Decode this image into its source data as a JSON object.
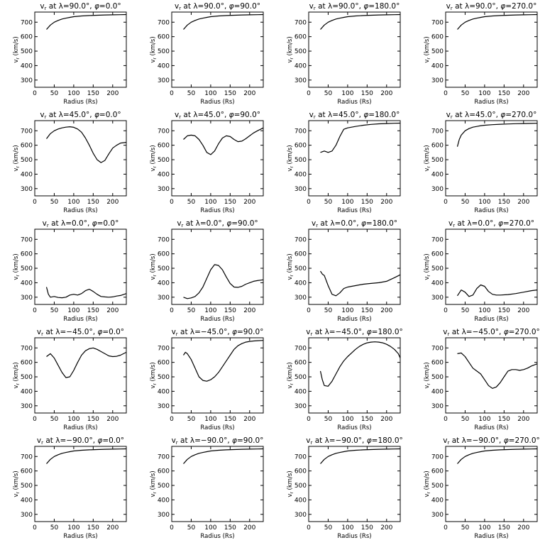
{
  "figure": {
    "background": "#ffffff",
    "line_color": "#000000"
  },
  "chart_data": [
    {
      "type": "line",
      "title": "v_r at λ=90.0°, φ=0.0°",
      "title_parts": {
        "lat": "90.0",
        "lon": "0.0"
      },
      "xlabel": "Radius (Rs)",
      "ylabel": "v_r (km/s)",
      "xlim": [
        0,
        235
      ],
      "ylim": [
        250,
        770
      ],
      "xticks": [
        0,
        50,
        100,
        150,
        200
      ],
      "yticks": [
        300,
        400,
        500,
        600,
        700
      ],
      "x": [
        30,
        40,
        50,
        60,
        70,
        80,
        90,
        100,
        120,
        140,
        160,
        180,
        200,
        220,
        235
      ],
      "y": [
        650,
        680,
        700,
        712,
        722,
        728,
        733,
        738,
        743,
        746,
        748,
        750,
        751,
        752,
        753
      ]
    },
    {
      "type": "line",
      "title": "v_r at λ=90.0°, φ=90.0°",
      "title_parts": {
        "lat": "90.0",
        "lon": "90.0"
      },
      "xlabel": "Radius (Rs)",
      "ylabel": "v_r (km/s)",
      "xlim": [
        0,
        235
      ],
      "ylim": [
        250,
        770
      ],
      "xticks": [
        0,
        50,
        100,
        150,
        200
      ],
      "yticks": [
        300,
        400,
        500,
        600,
        700
      ],
      "x": [
        30,
        40,
        50,
        60,
        70,
        80,
        90,
        100,
        120,
        140,
        160,
        180,
        200,
        220,
        235
      ],
      "y": [
        650,
        680,
        700,
        712,
        722,
        728,
        733,
        738,
        743,
        746,
        748,
        750,
        751,
        752,
        753
      ]
    },
    {
      "type": "line",
      "title": "v_r at λ=90.0°, φ=180.0°",
      "title_parts": {
        "lat": "90.0",
        "lon": "180.0"
      },
      "xlabel": "Radius (Rs)",
      "ylabel": "v_r (km/s)",
      "xlim": [
        0,
        235
      ],
      "ylim": [
        250,
        770
      ],
      "xticks": [
        0,
        50,
        100,
        150,
        200
      ],
      "yticks": [
        300,
        400,
        500,
        600,
        700
      ],
      "x": [
        30,
        40,
        50,
        60,
        70,
        80,
        90,
        100,
        120,
        140,
        160,
        180,
        200,
        220,
        235
      ],
      "y": [
        650,
        680,
        700,
        712,
        722,
        728,
        733,
        738,
        743,
        746,
        748,
        750,
        751,
        752,
        753
      ]
    },
    {
      "type": "line",
      "title": "v_r at λ=90.0°, φ=270.0°",
      "title_parts": {
        "lat": "90.0",
        "lon": "270.0"
      },
      "xlabel": "Radius (Rs)",
      "ylabel": "v_r (km/s)",
      "xlim": [
        0,
        235
      ],
      "ylim": [
        250,
        770
      ],
      "xticks": [
        0,
        50,
        100,
        150,
        200
      ],
      "yticks": [
        300,
        400,
        500,
        600,
        700
      ],
      "x": [
        30,
        40,
        50,
        60,
        70,
        80,
        90,
        100,
        120,
        140,
        160,
        180,
        200,
        220,
        235
      ],
      "y": [
        650,
        680,
        700,
        712,
        722,
        728,
        733,
        738,
        743,
        746,
        748,
        750,
        751,
        752,
        753
      ]
    },
    {
      "type": "line",
      "title": "v_r at λ=45.0°, φ=0.0°",
      "title_parts": {
        "lat": "45.0",
        "lon": "0.0"
      },
      "xlabel": "Radius (Rs)",
      "ylabel": "v_r (km/s)",
      "xlim": [
        0,
        235
      ],
      "ylim": [
        250,
        770
      ],
      "xticks": [
        0,
        50,
        100,
        150,
        200
      ],
      "yticks": [
        300,
        400,
        500,
        600,
        700
      ],
      "x": [
        30,
        40,
        50,
        60,
        70,
        80,
        90,
        100,
        110,
        120,
        130,
        140,
        150,
        160,
        170,
        180,
        190,
        200,
        210,
        220,
        235
      ],
      "y": [
        645,
        680,
        700,
        712,
        720,
        725,
        728,
        724,
        712,
        690,
        650,
        600,
        545,
        500,
        480,
        495,
        540,
        580,
        600,
        615,
        620
      ]
    },
    {
      "type": "line",
      "title": "v_r at λ=45.0°, φ=90.0°",
      "title_parts": {
        "lat": "45.0",
        "lon": "90.0"
      },
      "xlabel": "Radius (Rs)",
      "ylabel": "v_r (km/s)",
      "xlim": [
        0,
        235
      ],
      "ylim": [
        250,
        770
      ],
      "xticks": [
        0,
        50,
        100,
        150,
        200
      ],
      "yticks": [
        300,
        400,
        500,
        600,
        700
      ],
      "x": [
        30,
        40,
        50,
        60,
        70,
        80,
        90,
        100,
        110,
        120,
        130,
        140,
        150,
        160,
        170,
        180,
        190,
        200,
        210,
        220,
        235
      ],
      "y": [
        640,
        665,
        670,
        665,
        640,
        600,
        550,
        535,
        560,
        610,
        650,
        665,
        660,
        640,
        625,
        628,
        645,
        665,
        685,
        700,
        720
      ]
    },
    {
      "type": "line",
      "title": "v_r at λ=45.0°, φ=180.0°",
      "title_parts": {
        "lat": "45.0",
        "lon": "180.0"
      },
      "xlabel": "Radius (Rs)",
      "ylabel": "v_r (km/s)",
      "xlim": [
        0,
        235
      ],
      "ylim": [
        250,
        770
      ],
      "xticks": [
        0,
        50,
        100,
        150,
        200
      ],
      "yticks": [
        300,
        400,
        500,
        600,
        700
      ],
      "x": [
        30,
        40,
        50,
        60,
        70,
        80,
        90,
        100,
        110,
        120,
        140,
        160,
        180,
        200,
        220,
        235
      ],
      "y": [
        550,
        560,
        550,
        560,
        600,
        660,
        710,
        720,
        725,
        730,
        738,
        744,
        748,
        750,
        752,
        753
      ]
    },
    {
      "type": "line",
      "title": "v_r at λ=45.0°, φ=270.0°",
      "title_parts": {
        "lat": "45.0",
        "lon": "270.0"
      },
      "xlabel": "Radius (Rs)",
      "ylabel": "v_r (km/s)",
      "xlim": [
        0,
        235
      ],
      "ylim": [
        250,
        770
      ],
      "xticks": [
        0,
        50,
        100,
        150,
        200
      ],
      "yticks": [
        300,
        400,
        500,
        600,
        700
      ],
      "x": [
        30,
        35,
        40,
        50,
        60,
        70,
        80,
        90,
        100,
        120,
        140,
        160,
        180,
        200,
        220,
        235
      ],
      "y": [
        590,
        640,
        670,
        700,
        715,
        725,
        730,
        735,
        738,
        742,
        745,
        747,
        749,
        750,
        751,
        752
      ]
    },
    {
      "type": "line",
      "title": "v_r at λ=0.0°, φ=0.0°",
      "title_parts": {
        "lat": "0.0",
        "lon": "0.0"
      },
      "xlabel": "Radius (Rs)",
      "ylabel": "v_r (km/s)",
      "xlim": [
        0,
        235
      ],
      "ylim": [
        250,
        770
      ],
      "xticks": [
        0,
        50,
        100,
        150,
        200
      ],
      "yticks": [
        300,
        400,
        500,
        600,
        700
      ],
      "x": [
        30,
        35,
        40,
        50,
        60,
        70,
        80,
        90,
        100,
        110,
        120,
        130,
        140,
        150,
        160,
        170,
        180,
        190,
        200,
        210,
        220,
        235
      ],
      "y": [
        370,
        320,
        300,
        305,
        298,
        296,
        300,
        315,
        320,
        315,
        325,
        345,
        355,
        340,
        320,
        305,
        302,
        300,
        302,
        308,
        312,
        325
      ]
    },
    {
      "type": "line",
      "title": "v_r at λ=0.0°, φ=90.0°",
      "title_parts": {
        "lat": "0.0",
        "lon": "90.0"
      },
      "xlabel": "Radius (Rs)",
      "ylabel": "v_r (km/s)",
      "xlim": [
        0,
        235
      ],
      "ylim": [
        250,
        770
      ],
      "xticks": [
        0,
        50,
        100,
        150,
        200
      ],
      "yticks": [
        300,
        400,
        500,
        600,
        700
      ],
      "x": [
        30,
        40,
        50,
        60,
        70,
        80,
        90,
        100,
        110,
        120,
        130,
        140,
        150,
        160,
        170,
        180,
        190,
        200,
        210,
        220,
        235
      ],
      "y": [
        300,
        290,
        295,
        305,
        330,
        370,
        430,
        490,
        525,
        520,
        490,
        440,
        395,
        370,
        368,
        375,
        390,
        400,
        410,
        415,
        420
      ]
    },
    {
      "type": "line",
      "title": "v_r at λ=0.0°, φ=180.0°",
      "title_parts": {
        "lat": "0.0",
        "lon": "180.0"
      },
      "xlabel": "Radius (Rs)",
      "ylabel": "v_r (km/s)",
      "xlim": [
        0,
        235
      ],
      "ylim": [
        250,
        770
      ],
      "xticks": [
        0,
        50,
        100,
        150,
        200
      ],
      "yticks": [
        300,
        400,
        500,
        600,
        700
      ],
      "x": [
        30,
        35,
        40,
        50,
        60,
        70,
        80,
        90,
        100,
        110,
        120,
        140,
        160,
        180,
        200,
        220,
        235
      ],
      "y": [
        480,
        460,
        450,
        380,
        320,
        310,
        330,
        360,
        370,
        375,
        380,
        390,
        395,
        400,
        410,
        435,
        455
      ]
    },
    {
      "type": "line",
      "title": "v_r at λ=0.0°, φ=270.0°",
      "title_parts": {
        "lat": "0.0",
        "lon": "270.0"
      },
      "xlabel": "Radius (Rs)",
      "ylabel": "v_r (km/s)",
      "xlim": [
        0,
        235
      ],
      "ylim": [
        250,
        770
      ],
      "xticks": [
        0,
        50,
        100,
        150,
        200
      ],
      "yticks": [
        300,
        400,
        500,
        600,
        700
      ],
      "x": [
        30,
        40,
        50,
        60,
        70,
        80,
        90,
        100,
        110,
        120,
        130,
        140,
        160,
        180,
        200,
        220,
        235
      ],
      "y": [
        310,
        350,
        335,
        305,
        315,
        360,
        385,
        375,
        340,
        320,
        315,
        315,
        318,
        325,
        335,
        345,
        350
      ]
    },
    {
      "type": "line",
      "title": "v_r at λ=−45.0°, φ=0.0°",
      "title_parts": {
        "lat": "−45.0",
        "lon": "0.0"
      },
      "xlabel": "Radius (Rs)",
      "ylabel": "v_r (km/s)",
      "xlim": [
        0,
        235
      ],
      "ylim": [
        250,
        770
      ],
      "xticks": [
        0,
        50,
        100,
        150,
        200
      ],
      "yticks": [
        300,
        400,
        500,
        600,
        700
      ],
      "x": [
        30,
        40,
        50,
        60,
        70,
        80,
        90,
        100,
        110,
        120,
        130,
        140,
        150,
        160,
        170,
        180,
        190,
        200,
        210,
        220,
        235
      ],
      "y": [
        640,
        660,
        630,
        580,
        530,
        495,
        500,
        545,
        600,
        650,
        680,
        695,
        700,
        690,
        675,
        660,
        645,
        640,
        642,
        650,
        670
      ]
    },
    {
      "type": "line",
      "title": "v_r at λ=−45.0°, φ=90.0°",
      "title_parts": {
        "lat": "−45.0",
        "lon": "90.0"
      },
      "xlabel": "Radius (Rs)",
      "ylabel": "v_r (km/s)",
      "xlim": [
        0,
        235
      ],
      "ylim": [
        250,
        770
      ],
      "xticks": [
        0,
        50,
        100,
        150,
        200
      ],
      "yticks": [
        300,
        400,
        500,
        600,
        700
      ],
      "x": [
        30,
        35,
        40,
        50,
        60,
        70,
        80,
        90,
        100,
        110,
        120,
        130,
        140,
        150,
        160,
        170,
        180,
        190,
        200,
        210,
        220,
        235
      ],
      "y": [
        650,
        670,
        660,
        620,
        560,
        500,
        475,
        470,
        480,
        500,
        530,
        570,
        610,
        650,
        690,
        715,
        730,
        740,
        745,
        748,
        750,
        752
      ]
    },
    {
      "type": "line",
      "title": "v_r at λ=−45.0°, φ=180.0°",
      "title_parts": {
        "lat": "−45.0",
        "lon": "180.0"
      },
      "xlabel": "Radius (Rs)",
      "ylabel": "v_r (km/s)",
      "xlim": [
        0,
        235
      ],
      "ylim": [
        250,
        770
      ],
      "xticks": [
        0,
        50,
        100,
        150,
        200
      ],
      "yticks": [
        300,
        400,
        500,
        600,
        700
      ],
      "x": [
        30,
        35,
        40,
        50,
        60,
        70,
        80,
        90,
        100,
        110,
        120,
        130,
        140,
        150,
        160,
        170,
        180,
        190,
        200,
        210,
        220,
        230,
        235
      ],
      "y": [
        540,
        480,
        440,
        435,
        470,
        520,
        570,
        610,
        640,
        665,
        690,
        710,
        725,
        735,
        740,
        742,
        740,
        735,
        725,
        710,
        690,
        660,
        630
      ]
    },
    {
      "type": "line",
      "title": "v_r at λ=−45.0°, φ=270.0°",
      "title_parts": {
        "lat": "−45.0",
        "lon": "270.0"
      },
      "xlabel": "Radius (Rs)",
      "ylabel": "v_r (km/s)",
      "xlim": [
        0,
        235
      ],
      "ylim": [
        250,
        770
      ],
      "xticks": [
        0,
        50,
        100,
        150,
        200
      ],
      "yticks": [
        300,
        400,
        500,
        600,
        700
      ],
      "x": [
        30,
        40,
        50,
        60,
        70,
        80,
        90,
        100,
        110,
        120,
        130,
        140,
        150,
        160,
        170,
        180,
        190,
        200,
        210,
        220,
        235
      ],
      "y": [
        660,
        665,
        640,
        600,
        560,
        540,
        520,
        480,
        440,
        420,
        430,
        460,
        500,
        540,
        550,
        550,
        545,
        550,
        560,
        575,
        590
      ]
    },
    {
      "type": "line",
      "title": "v_r at λ=−90.0°, φ=0.0°",
      "title_parts": {
        "lat": "−90.0",
        "lon": "0.0"
      },
      "xlabel": "Radius (Rs)",
      "ylabel": "v_r (km/s)",
      "xlim": [
        0,
        235
      ],
      "ylim": [
        250,
        770
      ],
      "xticks": [
        0,
        50,
        100,
        150,
        200
      ],
      "yticks": [
        300,
        400,
        500,
        600,
        700
      ],
      "x": [
        30,
        40,
        50,
        60,
        70,
        80,
        90,
        100,
        120,
        140,
        160,
        180,
        200,
        220,
        235
      ],
      "y": [
        650,
        680,
        700,
        712,
        722,
        728,
        733,
        738,
        743,
        746,
        748,
        750,
        751,
        752,
        753
      ]
    },
    {
      "type": "line",
      "title": "v_r at λ=−90.0°, φ=90.0°",
      "title_parts": {
        "lat": "−90.0",
        "lon": "90.0"
      },
      "xlabel": "Radius (Rs)",
      "ylabel": "v_r (km/s)",
      "xlim": [
        0,
        235
      ],
      "ylim": [
        250,
        770
      ],
      "xticks": [
        0,
        50,
        100,
        150,
        200
      ],
      "yticks": [
        300,
        400,
        500,
        600,
        700
      ],
      "x": [
        30,
        40,
        50,
        60,
        70,
        80,
        90,
        100,
        120,
        140,
        160,
        180,
        200,
        220,
        235
      ],
      "y": [
        650,
        680,
        700,
        712,
        722,
        728,
        733,
        738,
        743,
        746,
        748,
        750,
        751,
        752,
        753
      ]
    },
    {
      "type": "line",
      "title": "v_r at λ=−90.0°, φ=180.0°",
      "title_parts": {
        "lat": "−90.0",
        "lon": "180.0"
      },
      "xlabel": "Radius (Rs)",
      "ylabel": "v_r (km/s)",
      "xlim": [
        0,
        235
      ],
      "ylim": [
        250,
        770
      ],
      "xticks": [
        0,
        50,
        100,
        150,
        200
      ],
      "yticks": [
        300,
        400,
        500,
        600,
        700
      ],
      "x": [
        30,
        40,
        50,
        60,
        70,
        80,
        90,
        100,
        120,
        140,
        160,
        180,
        200,
        220,
        235
      ],
      "y": [
        650,
        680,
        700,
        712,
        722,
        728,
        733,
        738,
        743,
        746,
        748,
        750,
        751,
        752,
        753
      ]
    },
    {
      "type": "line",
      "title": "v_r at λ=−90.0°, φ=270.0°",
      "title_parts": {
        "lat": "−90.0",
        "lon": "270.0"
      },
      "xlabel": "Radius (Rs)",
      "ylabel": "v_r (km/s)",
      "xlim": [
        0,
        235
      ],
      "ylim": [
        250,
        770
      ],
      "xticks": [
        0,
        50,
        100,
        150,
        200
      ],
      "yticks": [
        300,
        400,
        500,
        600,
        700
      ],
      "x": [
        30,
        40,
        50,
        60,
        70,
        80,
        90,
        100,
        120,
        140,
        160,
        180,
        200,
        220,
        235
      ],
      "y": [
        650,
        680,
        700,
        712,
        722,
        728,
        733,
        738,
        743,
        746,
        748,
        750,
        751,
        752,
        753
      ]
    }
  ]
}
